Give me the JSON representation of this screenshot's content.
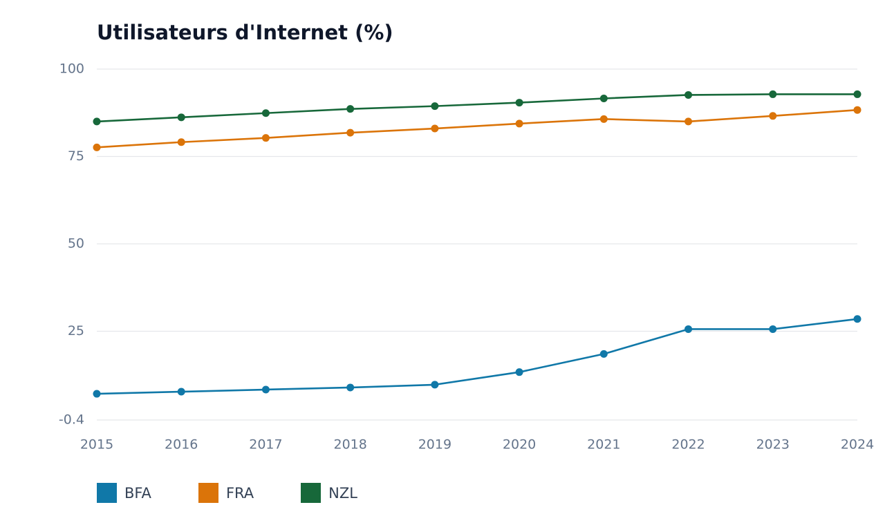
{
  "chart_data": {
    "type": "line",
    "title": "Utilisateurs d'Internet (%)",
    "xlabel": "",
    "ylabel": "",
    "x": [
      "2015",
      "2016",
      "2017",
      "2018",
      "2019",
      "2020",
      "2021",
      "2022",
      "2023",
      "2024"
    ],
    "y_ticks": [
      "-0.4",
      "25",
      "50",
      "75",
      "100"
    ],
    "y_tick_values": [
      -0.4,
      25,
      50,
      75,
      100
    ],
    "ylim": [
      -0.4,
      100
    ],
    "grid": "horizontal",
    "legend_position": "bottom-left",
    "series": [
      {
        "name": "BFA",
        "color": "#1078a8",
        "values": [
          7.1,
          7.7,
          8.3,
          8.9,
          9.7,
          13.3,
          18.5,
          25.6,
          25.6,
          28.5
        ]
      },
      {
        "name": "FRA",
        "color": "#db7409",
        "values": [
          77.6,
          79.1,
          80.3,
          81.8,
          83.0,
          84.4,
          85.7,
          85.0,
          86.6,
          88.3
        ]
      },
      {
        "name": "NZL",
        "color": "#17683a",
        "values": [
          85.0,
          86.2,
          87.4,
          88.6,
          89.4,
          90.4,
          91.6,
          92.6,
          92.8,
          92.8
        ]
      }
    ]
  }
}
